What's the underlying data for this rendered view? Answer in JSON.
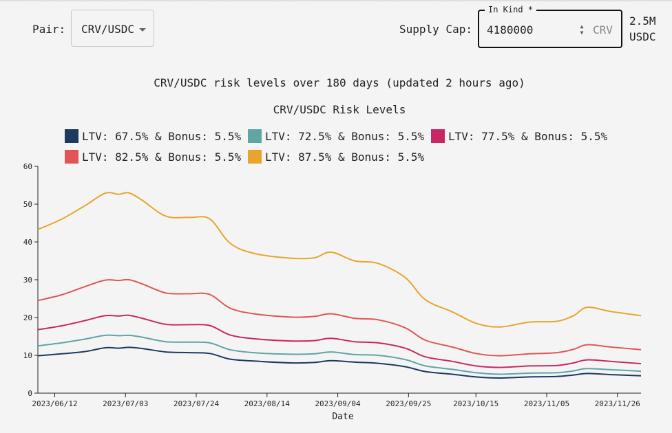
{
  "controls": {
    "pair_label": "Pair:",
    "pair_value": "CRV/USDC",
    "supply_cap_label": "Supply Cap:",
    "supply_cap_legend": "In Kind *",
    "supply_cap_value": "4180000",
    "supply_cap_unit": "CRV",
    "usd_amount": "2.5M",
    "usd_unit": "USDC"
  },
  "subtitle": "CRV/USDC risk levels over 180 days (updated 2 hours ago)",
  "chart_data": {
    "type": "line",
    "title": "CRV/USDC Risk Levels",
    "xlabel": "Date",
    "ylabel": "",
    "ylim": [
      0,
      60
    ],
    "yticks": [
      0,
      10,
      20,
      30,
      40,
      50,
      60
    ],
    "xlim": [
      "2023-06-07",
      "2023-12-03"
    ],
    "xticks": [
      "2023/06/12",
      "2023/07/03",
      "2023/07/24",
      "2023/08/14",
      "2023/09/04",
      "2023/09/25",
      "2023/10/15",
      "2023/11/05",
      "2023/11/26"
    ],
    "legend_position": "top",
    "x": [
      "2023-06-07",
      "2023-06-14",
      "2023-06-21",
      "2023-06-27",
      "2023-07-01",
      "2023-07-04",
      "2023-07-08",
      "2023-07-15",
      "2023-07-22",
      "2023-07-28",
      "2023-08-03",
      "2023-08-10",
      "2023-08-21",
      "2023-08-28",
      "2023-09-02",
      "2023-09-09",
      "2023-09-16",
      "2023-09-24",
      "2023-09-30",
      "2023-10-08",
      "2023-10-15",
      "2023-10-22",
      "2023-10-31",
      "2023-11-08",
      "2023-11-13",
      "2023-11-17",
      "2023-11-24",
      "2023-12-03"
    ],
    "series": [
      {
        "name": "LTV: 67.5% & Bonus: 5.5%",
        "color": "#1c3a5e",
        "values": [
          9.9,
          10.4,
          11.0,
          12.0,
          11.9,
          12.1,
          11.8,
          10.9,
          10.7,
          10.5,
          9.0,
          8.5,
          8.0,
          8.1,
          8.6,
          8.2,
          7.9,
          7.0,
          5.7,
          5.0,
          4.3,
          4.0,
          4.3,
          4.4,
          4.8,
          5.2,
          4.9,
          4.6
        ]
      },
      {
        "name": "LTV: 72.5% & Bonus: 5.5%",
        "color": "#5fa5a4",
        "values": [
          12.5,
          13.3,
          14.3,
          15.3,
          15.2,
          15.3,
          14.8,
          13.6,
          13.5,
          13.3,
          11.5,
          10.7,
          10.3,
          10.4,
          10.9,
          10.2,
          10.0,
          8.9,
          7.2,
          6.3,
          5.4,
          5.0,
          5.3,
          5.4,
          5.9,
          6.5,
          6.2,
          5.8
        ]
      },
      {
        "name": "LTV: 77.5% & Bonus: 5.5%",
        "color": "#c92764",
        "values": [
          16.8,
          17.8,
          19.2,
          20.5,
          20.4,
          20.6,
          19.8,
          18.2,
          18.1,
          17.9,
          15.4,
          14.4,
          13.8,
          13.9,
          14.5,
          13.6,
          13.3,
          11.9,
          9.6,
          8.4,
          7.2,
          6.8,
          7.2,
          7.3,
          8.0,
          8.8,
          8.4,
          7.8
        ]
      },
      {
        "name": "LTV: 82.5% & Bonus: 5.5%",
        "color": "#e05656",
        "values": [
          24.5,
          26.0,
          28.2,
          29.9,
          29.8,
          30.0,
          28.9,
          26.5,
          26.3,
          26.1,
          22.5,
          21.0,
          20.1,
          20.3,
          21.0,
          19.8,
          19.4,
          17.3,
          14.0,
          12.2,
          10.5,
          9.9,
          10.4,
          10.7,
          11.6,
          12.8,
          12.2,
          11.5
        ]
      },
      {
        "name": "LTV: 87.5% & Bonus: 5.5%",
        "color": "#e9a42b",
        "values": [
          43.3,
          46.0,
          49.6,
          52.9,
          52.6,
          53.0,
          51.0,
          46.8,
          46.5,
          46.1,
          39.7,
          37.0,
          35.7,
          35.8,
          37.3,
          35.0,
          34.3,
          30.6,
          24.7,
          21.5,
          18.5,
          17.5,
          18.8,
          19.0,
          20.5,
          22.7,
          21.6,
          20.5
        ]
      }
    ]
  }
}
